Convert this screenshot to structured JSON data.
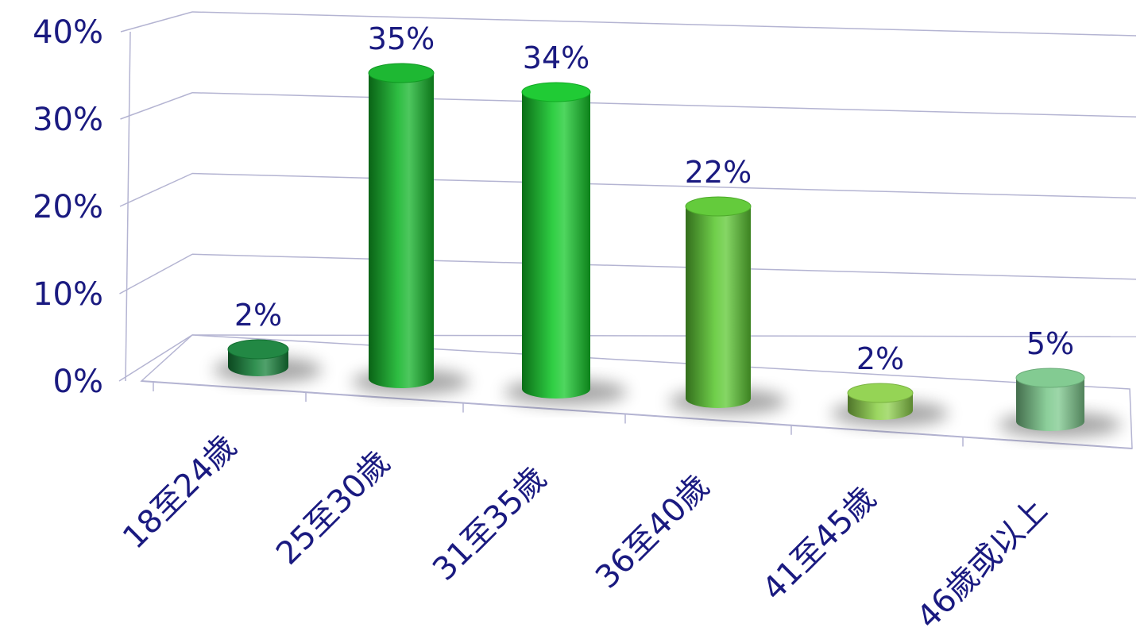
{
  "chart_data": {
    "type": "bar",
    "categories": [
      "18至24歲",
      "25至30歲",
      "31至35歲",
      "36至40歲",
      "41至45歲",
      "46歲或以上"
    ],
    "values": [
      2,
      35,
      34,
      22,
      2,
      5
    ],
    "value_labels": [
      "2%",
      "35%",
      "34%",
      "22%",
      "2%",
      "5%"
    ],
    "y_ticks": [
      "0%",
      "10%",
      "20%",
      "30%",
      "40%"
    ],
    "ylim": [
      0,
      40
    ],
    "grid": true,
    "legend": "none",
    "style": "3d-cylinder",
    "colors": [
      "#16823a",
      "#12b428",
      "#14c82a",
      "#5cc832",
      "#8fd24c",
      "#7cc88c"
    ],
    "text_color": "#1a1a80",
    "gridline_color": "#b4b4d2"
  }
}
